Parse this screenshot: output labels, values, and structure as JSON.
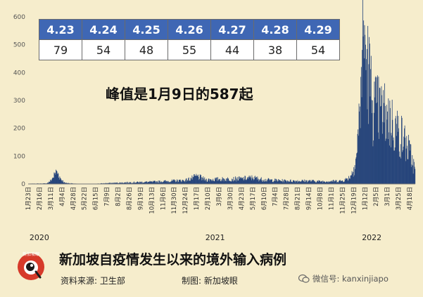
{
  "chart_data": {
    "type": "bar",
    "title": "",
    "xlabel": "",
    "ylabel": "",
    "ylim": [
      0,
      600
    ],
    "yticks": [
      0,
      100,
      200,
      300,
      400,
      500,
      600
    ],
    "grid": false,
    "bar_color": "#1f3f78",
    "x_tick_labels": [
      "1月23日",
      "2月16日",
      "3月11日",
      "4月4日",
      "4月28日",
      "5月22日",
      "6月15日",
      "7月9日",
      "8月2日",
      "8月26日",
      "9月19日",
      "10月13日",
      "11月6日",
      "11月30日",
      "12月24日",
      "1月17日",
      "2月10日",
      "3月6日",
      "3月30日",
      "4月23日",
      "5月17日",
      "6月10日",
      "7月4日",
      "7月28日",
      "8月21日",
      "9月14日",
      "10月8日",
      "11月1日",
      "11月25日",
      "12月19日",
      "1月12日",
      "2月5日",
      "3月1日",
      "3月25日",
      "4月18日"
    ],
    "year_labels": [
      "2020",
      "2021",
      "2022"
    ],
    "start_date": "2020-01-23",
    "end_date": "2022-04-29",
    "series_points": [
      [
        "2020-01-23",
        1
      ],
      [
        "2020-03-01",
        2
      ],
      [
        "2020-03-08",
        8
      ],
      [
        "2020-03-14",
        20
      ],
      [
        "2020-03-20",
        40
      ],
      [
        "2020-03-23",
        48
      ],
      [
        "2020-03-26",
        40
      ],
      [
        "2020-04-01",
        20
      ],
      [
        "2020-04-10",
        4
      ],
      [
        "2020-05-15",
        0
      ],
      [
        "2020-06-15",
        1
      ],
      [
        "2020-07-09",
        3
      ],
      [
        "2020-08-26",
        6
      ],
      [
        "2020-10-13",
        8
      ],
      [
        "2020-12-24",
        14
      ],
      [
        "2021-01-10",
        24
      ],
      [
        "2021-01-17",
        30
      ],
      [
        "2021-02-05",
        16
      ],
      [
        "2021-03-06",
        18
      ],
      [
        "2021-04-23",
        20
      ],
      [
        "2021-05-17",
        24
      ],
      [
        "2021-06-10",
        16
      ],
      [
        "2021-07-28",
        12
      ],
      [
        "2021-09-14",
        12
      ],
      [
        "2021-10-08",
        10
      ],
      [
        "2021-11-25",
        12
      ],
      [
        "2021-12-05",
        20
      ],
      [
        "2021-12-12",
        30
      ],
      [
        "2021-12-19",
        60
      ],
      [
        "2021-12-25",
        110
      ],
      [
        "2021-12-31",
        260
      ],
      [
        "2022-01-04",
        420
      ],
      [
        "2022-01-09",
        587
      ],
      [
        "2022-01-13",
        500
      ],
      [
        "2022-01-20",
        430
      ],
      [
        "2022-01-28",
        300
      ],
      [
        "2022-02-05",
        290
      ],
      [
        "2022-02-15",
        280
      ],
      [
        "2022-03-01",
        260
      ],
      [
        "2022-03-12",
        230
      ],
      [
        "2022-03-25",
        200
      ],
      [
        "2022-04-05",
        170
      ],
      [
        "2022-04-18",
        120
      ],
      [
        "2022-04-29",
        54
      ]
    ]
  },
  "recent_table": {
    "dates": [
      "4.23",
      "4.24",
      "4.25",
      "4.26",
      "4.27",
      "4.28",
      "4.29"
    ],
    "counts": [
      "79",
      "54",
      "48",
      "55",
      "44",
      "38",
      "54"
    ]
  },
  "peak_note": "峰值是1月9日的587起",
  "footer": {
    "logo_text": "新加坡眼",
    "title": "新加坡自疫情发生以来的境外输入病例",
    "source": "资料来源:  卫生部",
    "maker": "制图:  新加坡眼",
    "wechat": "微信号: kanxinjiapo"
  },
  "colors": {
    "background": "#f6edcc",
    "bar": "#1f3f78",
    "table_header": "#3f67b4",
    "logo_red": "#d63a2a"
  }
}
